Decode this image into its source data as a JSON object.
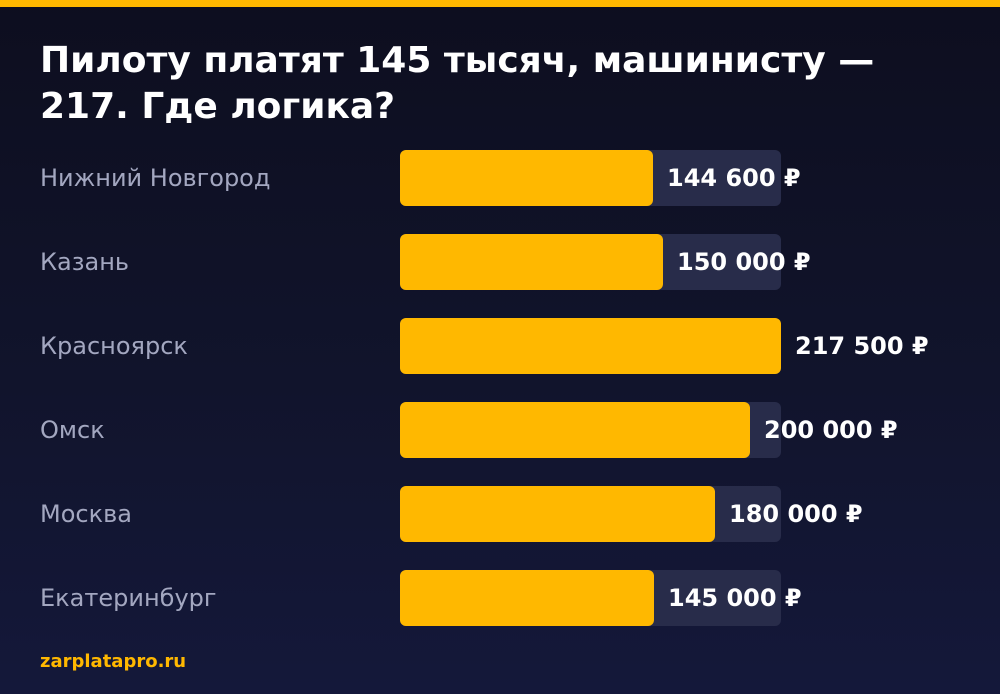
{
  "title": "Пилоту платят 145 тысяч, машинисту — 217. Где логика?",
  "footer": "zarplatapro.ru",
  "colors": {
    "accent": "#ffb800",
    "track": "#282c4a",
    "label": "#a3a7c0",
    "value_text": "#ffffff"
  },
  "chart_data": {
    "type": "bar",
    "orientation": "horizontal",
    "title": "Пилоту платят 145 тысяч, машинисту — 217. Где логика?",
    "categories": [
      "Нижний Новгород",
      "Казань",
      "Красноярск",
      "Омск",
      "Москва",
      "Екатеринбург"
    ],
    "values": [
      144600,
      150000,
      217500,
      200000,
      180000,
      145000
    ],
    "value_labels": [
      "144 600 ₽",
      "150 000 ₽",
      "217 500 ₽",
      "200 000 ₽",
      "180 000 ₽",
      "145 000 ₽"
    ],
    "xlim": [
      0,
      217500
    ],
    "grid": false,
    "legend": "none"
  }
}
